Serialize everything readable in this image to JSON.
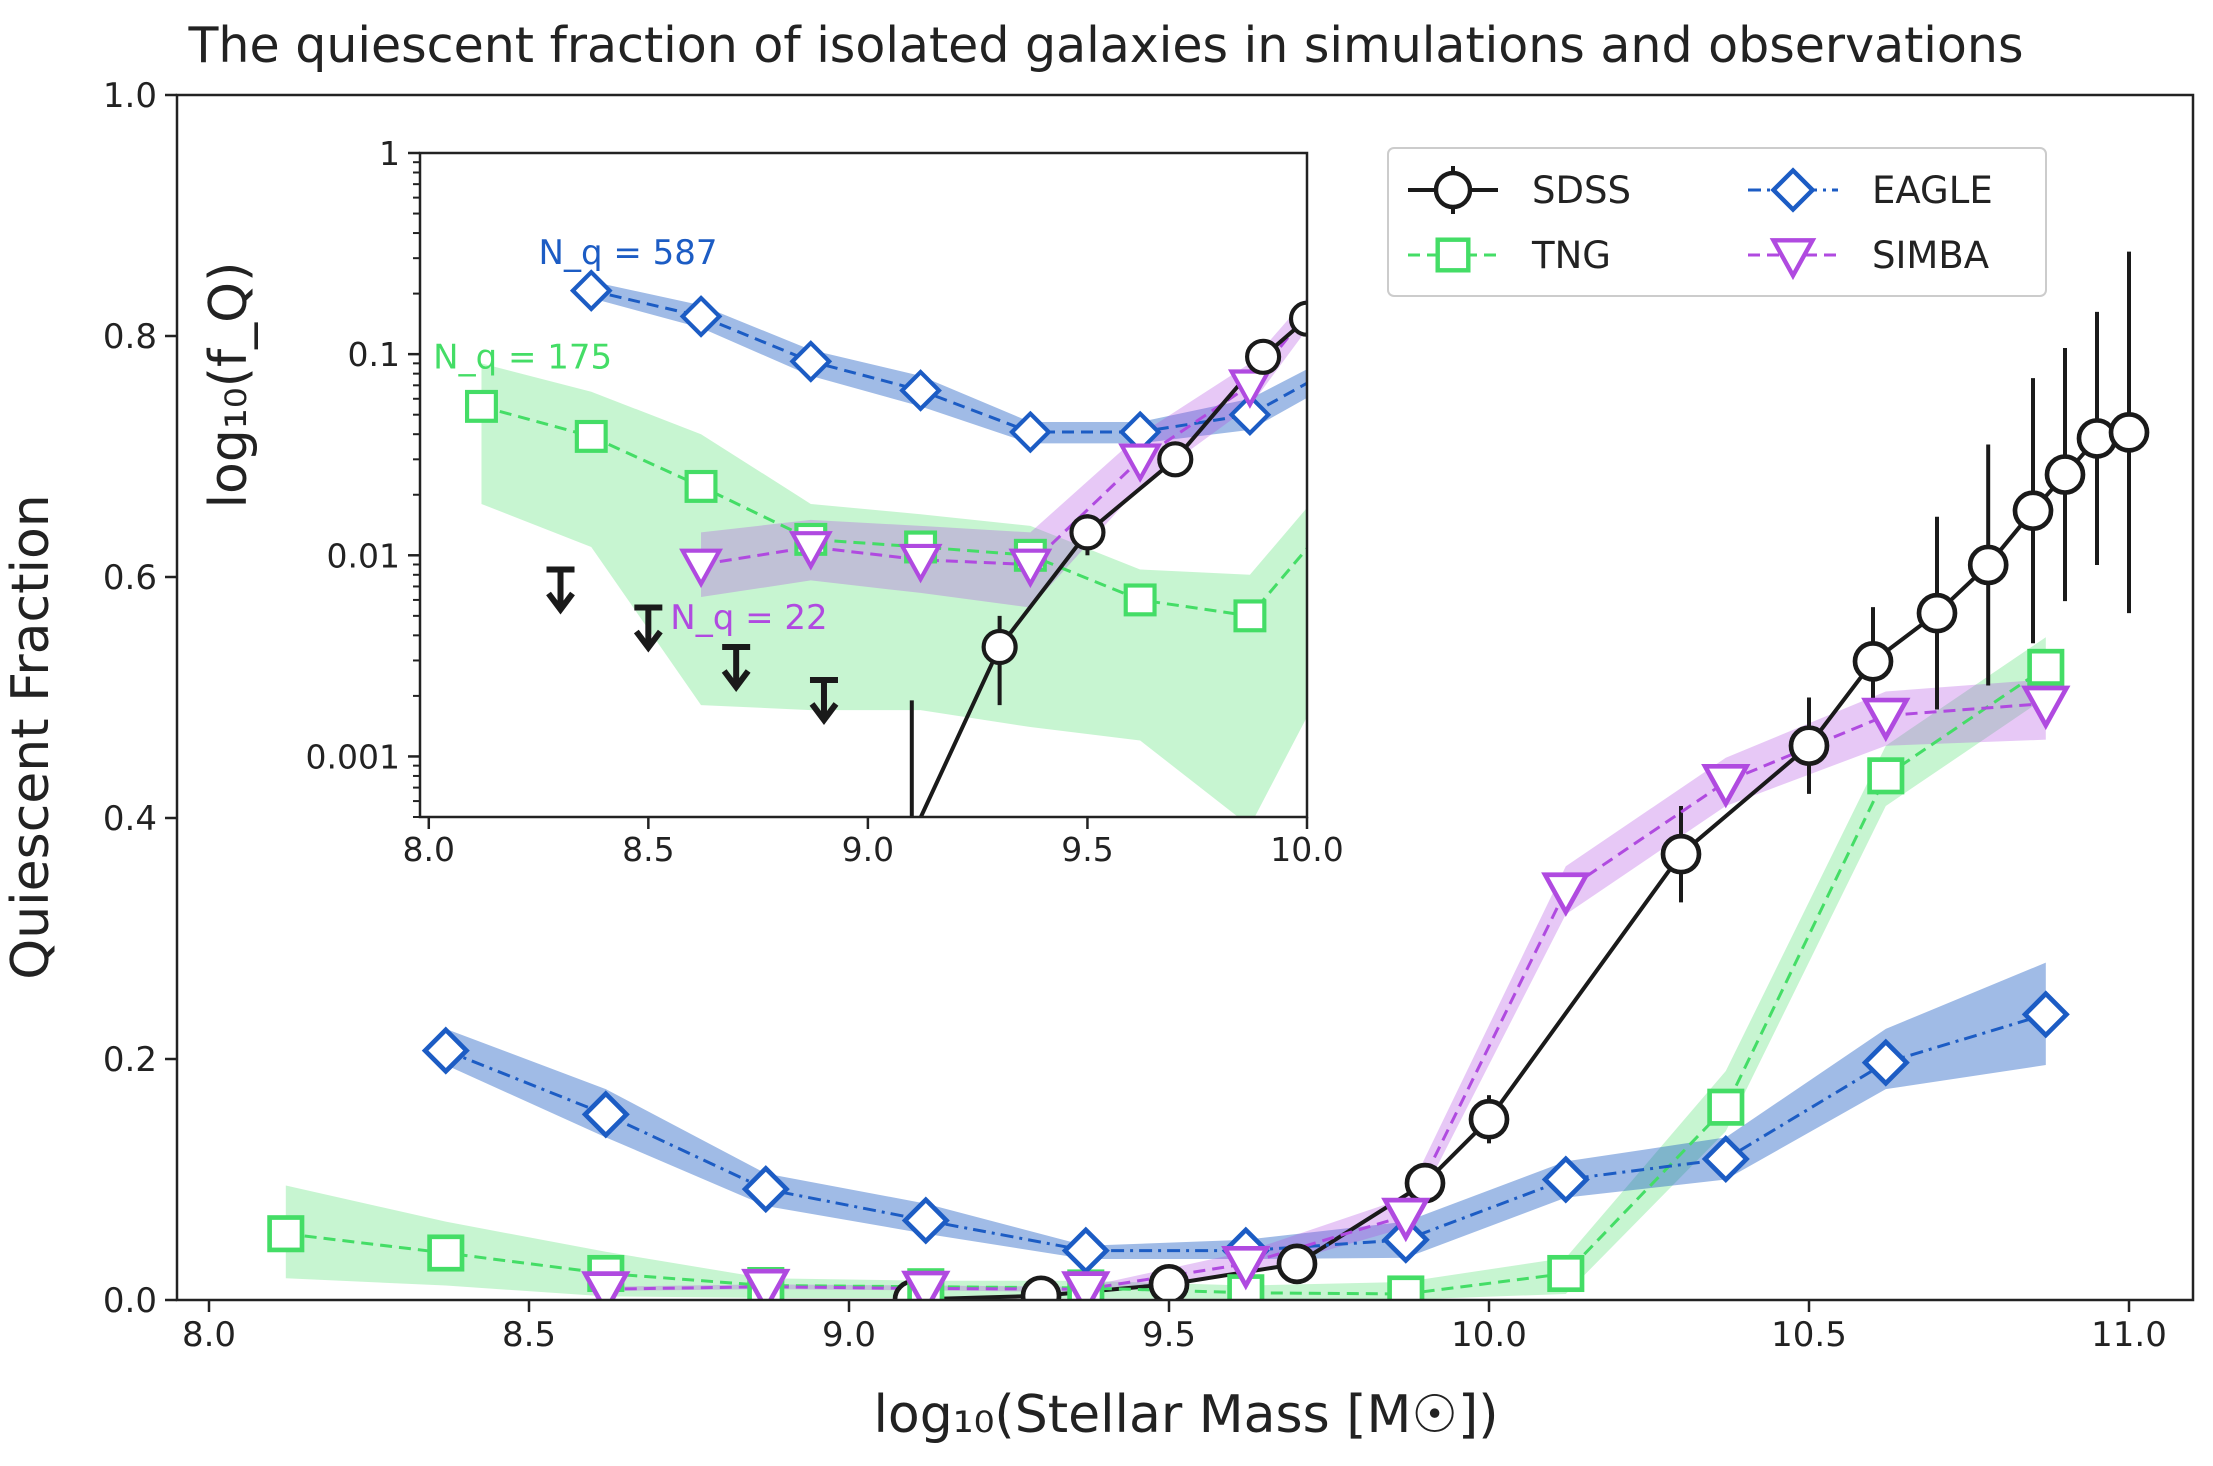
{
  "chart_data": {
    "type": "line",
    "title": "The quiescent fraction of isolated galaxies in simulations and observations",
    "xlabel": "log₁₀(Stellar Mass [M☉])",
    "ylabel": "Quiescent Fraction",
    "xlim": [
      7.95,
      11.1
    ],
    "ylim": [
      0.0,
      1.0
    ],
    "xticks": [
      "8.0",
      "8.5",
      "9.0",
      "9.5",
      "10.0",
      "10.5",
      "11.0"
    ],
    "yticks": [
      "0.0",
      "0.2",
      "0.4",
      "0.6",
      "0.8",
      "1.0"
    ],
    "grid": false,
    "legend_position": "top-right",
    "legend_columns": 2,
    "colors": {
      "SDSS": "#1a1a1a",
      "TNG": "#44dd66",
      "EAGLE": "#1c5cc4",
      "SIMBA": "#b04ae0"
    },
    "series": [
      {
        "name": "SDSS",
        "line": "solid",
        "marker": "circle",
        "x": [
          9.1,
          9.3,
          9.5,
          9.7,
          9.9,
          10.0,
          10.3,
          10.5,
          10.6,
          10.7,
          10.78,
          10.85,
          10.9,
          10.95,
          11.0
        ],
        "y": [
          0.0004,
          0.0035,
          0.013,
          0.03,
          0.097,
          0.15,
          0.37,
          0.46,
          0.53,
          0.57,
          0.61,
          0.655,
          0.685,
          0.715,
          0.72
        ],
        "yerr": [
          0.0004,
          0.0015,
          0.003,
          0.005,
          0.012,
          0.02,
          0.04,
          0.04,
          0.045,
          0.08,
          0.1,
          0.11,
          0.105,
          0.105,
          0.15
        ]
      },
      {
        "name": "TNG",
        "line": "dashed",
        "marker": "square",
        "x": [
          8.12,
          8.37,
          8.62,
          8.87,
          9.12,
          9.37,
          9.62,
          9.87,
          10.12,
          10.37,
          10.62,
          10.87
        ],
        "y": [
          0.055,
          0.039,
          0.022,
          0.012,
          0.011,
          0.01,
          0.006,
          0.005,
          0.022,
          0.16,
          0.435,
          0.525
        ],
        "band_low": [
          0.018,
          0.012,
          0.003,
          0.0017,
          0.0016,
          0.0015,
          0.0009,
          0.0003,
          0.005,
          0.14,
          0.41,
          0.5
        ],
        "band_high": [
          0.095,
          0.065,
          0.04,
          0.018,
          0.016,
          0.016,
          0.012,
          0.015,
          0.035,
          0.19,
          0.46,
          0.55
        ]
      },
      {
        "name": "EAGLE",
        "line": "dashdot",
        "marker": "diamond",
        "x": [
          8.37,
          8.62,
          8.87,
          9.12,
          9.37,
          9.62,
          9.87,
          10.12,
          10.37,
          10.62,
          10.87
        ],
        "y": [
          0.207,
          0.154,
          0.092,
          0.066,
          0.041,
          0.041,
          0.05,
          0.1,
          0.117,
          0.197,
          0.237
        ],
        "band_low": [
          0.195,
          0.135,
          0.078,
          0.055,
          0.034,
          0.034,
          0.035,
          0.085,
          0.1,
          0.175,
          0.195
        ],
        "band_high": [
          0.225,
          0.175,
          0.105,
          0.08,
          0.045,
          0.05,
          0.065,
          0.115,
          0.135,
          0.225,
          0.28
        ]
      },
      {
        "name": "SIMBA",
        "line": "dashed",
        "marker": "triangle-down",
        "x": [
          8.62,
          8.87,
          9.12,
          9.37,
          9.62,
          9.87,
          10.12,
          10.37,
          10.62,
          10.87
        ],
        "y": [
          0.009,
          0.011,
          0.0095,
          0.009,
          0.03,
          0.07,
          0.34,
          0.43,
          0.485,
          0.495
        ],
        "band_low": [
          0.0075,
          0.009,
          0.008,
          0.0065,
          0.022,
          0.06,
          0.32,
          0.41,
          0.46,
          0.465
        ],
        "band_high": [
          0.011,
          0.013,
          0.012,
          0.011,
          0.04,
          0.085,
          0.36,
          0.45,
          0.505,
          0.515
        ]
      }
    ],
    "inset": {
      "ylabel": "log₁₀(f_Q)",
      "yscale": "log",
      "xlim": [
        7.98,
        10.0
      ],
      "ylim": [
        0.0005,
        1.0
      ],
      "xticks": [
        "8.0",
        "8.5",
        "9.0",
        "9.5",
        "10.0"
      ],
      "yticks": [
        "0.001",
        "0.01",
        "0.1",
        "1"
      ],
      "series": [
        {
          "name": "EAGLE",
          "x": [
            8.37,
            8.62,
            8.87,
            9.12,
            9.37,
            9.62,
            9.87,
            10.12
          ],
          "y": [
            0.207,
            0.154,
            0.092,
            0.066,
            0.041,
            0.041,
            0.05,
            0.1
          ],
          "band_low": [
            0.19,
            0.135,
            0.078,
            0.055,
            0.036,
            0.036,
            0.042,
            0.085
          ],
          "band_high": [
            0.23,
            0.175,
            0.105,
            0.078,
            0.046,
            0.046,
            0.06,
            0.115
          ]
        },
        {
          "name": "TNG",
          "x": [
            8.12,
            8.37,
            8.62,
            8.87,
            9.12,
            9.37,
            9.62,
            9.87,
            10.12
          ],
          "y": [
            0.055,
            0.039,
            0.022,
            0.012,
            0.011,
            0.01,
            0.006,
            0.005,
            0.022
          ],
          "band_low": [
            0.018,
            0.011,
            0.0018,
            0.0017,
            0.0017,
            0.0014,
            0.0012,
            0.00045,
            0.005
          ],
          "band_high": [
            0.09,
            0.065,
            0.04,
            0.018,
            0.016,
            0.014,
            0.0085,
            0.008,
            0.035
          ]
        },
        {
          "name": "SIMBA",
          "x": [
            8.62,
            8.87,
            9.12,
            9.37,
            9.62,
            9.87,
            10.12
          ],
          "y": [
            0.009,
            0.011,
            0.0095,
            0.009,
            0.03,
            0.07,
            0.34
          ],
          "band_low": [
            0.0062,
            0.0075,
            0.0065,
            0.0055,
            0.022,
            0.055,
            0.3
          ],
          "band_high": [
            0.013,
            0.015,
            0.014,
            0.013,
            0.04,
            0.09,
            0.38
          ]
        },
        {
          "name": "SDSS",
          "x": [
            9.1,
            9.3,
            9.5,
            9.7,
            9.9,
            10.0
          ],
          "y": [
            0.0004,
            0.0035,
            0.013,
            0.03,
            0.097,
            0.15
          ],
          "yerr_low": [
            0.0003,
            0.0017,
            0.003,
            0.005,
            0.012,
            0.02
          ],
          "yerr_high": [
            0.0015,
            0.0015,
            0.003,
            0.005,
            0.012,
            0.02
          ]
        }
      ],
      "upper_limits": {
        "x": [
          8.3,
          8.5,
          8.7,
          8.9
        ],
        "y": [
          0.0085,
          0.0055,
          0.0035,
          0.0024
        ]
      },
      "annotations": [
        {
          "series": "EAGLE",
          "text": "N_q = 587",
          "x": 8.25,
          "y": 0.28
        },
        {
          "series": "TNG",
          "text": "N_q = 175",
          "x": 8.01,
          "y": 0.085
        },
        {
          "series": "SIMBA",
          "text": "N_q = 22",
          "x": 8.55,
          "y": 0.0043
        }
      ]
    }
  }
}
